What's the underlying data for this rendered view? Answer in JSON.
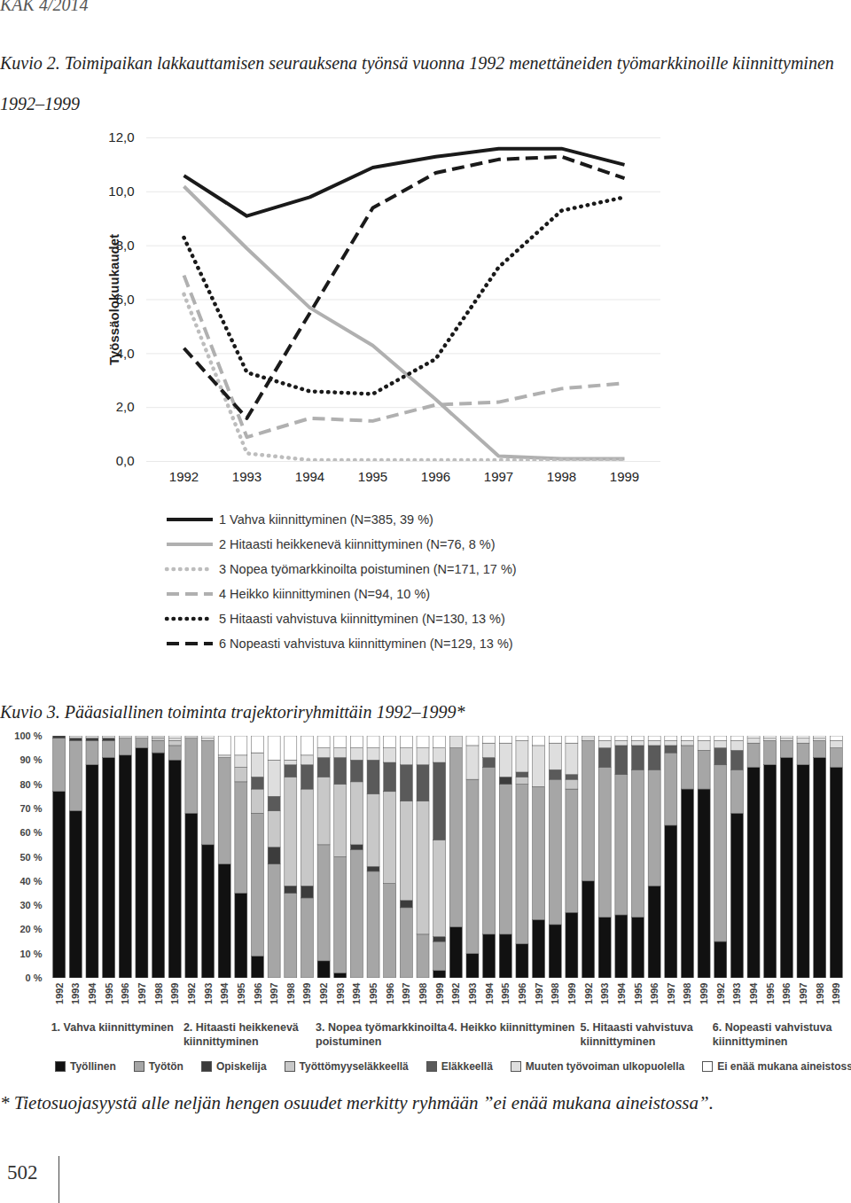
{
  "page": {
    "header": "KAK 4/2014",
    "page_number": "502"
  },
  "chart_data": [
    {
      "type": "line",
      "title": "Kuvio 2. Toimipaikan lakkauttamisen seurauksena työnsä vuonna 1992 menettäneiden työmarkkinoille kiinnittyminen 1992–1999",
      "y_label": "Työssäolokuukaudet",
      "categories": [
        "1992",
        "1993",
        "1994",
        "1995",
        "1996",
        "1997",
        "1998",
        "1999"
      ],
      "ylim": [
        0,
        12
      ],
      "yticks": [
        {
          "value": 0,
          "label": "0,0"
        },
        {
          "value": 2,
          "label": "2,0"
        },
        {
          "value": 4,
          "label": "4,0"
        },
        {
          "value": 6,
          "label": "6,0"
        },
        {
          "value": 8,
          "label": "8,0"
        },
        {
          "value": 10,
          "label": "10,0"
        },
        {
          "value": 12,
          "label": "12,0"
        }
      ],
      "grid": true,
      "legend": "bottom",
      "series": [
        {
          "name": "1 Vahva kiinnittyminen (N=385, 39 %)",
          "color": "#1a1a1a",
          "line_style": "solid",
          "values": [
            10.6,
            9.1,
            9.8,
            10.9,
            11.3,
            11.6,
            11.6,
            11.0
          ]
        },
        {
          "name": "2 Hitaasti heikkenevä kiinnittyminen (N=76, 8 %)",
          "color": "#b0b0b0",
          "line_style": "solid",
          "values": [
            10.2,
            7.9,
            5.7,
            4.3,
            2.3,
            0.2,
            0.1,
            0.1
          ]
        },
        {
          "name": "3 Nopea työmarkkinoilta poistuminen (N=171, 17 %)",
          "color": "#bdbdbd",
          "line_style": "dotted",
          "values": [
            6.2,
            0.3,
            0.05,
            0.05,
            0.05,
            0.05,
            0.05,
            0.05
          ]
        },
        {
          "name": "4 Heikko kiinnittyminen (N=94, 10 %)",
          "color": "#b0b0b0",
          "line_style": "dashed",
          "values": [
            6.9,
            0.9,
            1.6,
            1.5,
            2.1,
            2.2,
            2.7,
            2.9
          ]
        },
        {
          "name": "5 Hitaasti vahvistuva kiinnittyminen (N=130, 13 %)",
          "color": "#1a1a1a",
          "line_style": "dotted",
          "values": [
            8.3,
            3.3,
            2.6,
            2.5,
            3.8,
            7.2,
            9.3,
            9.8
          ]
        },
        {
          "name": "6 Nopeasti vahvistuva kiinnittyminen (N=129, 13 %)",
          "color": "#1a1a1a",
          "line_style": "dashed",
          "values": [
            4.2,
            1.6,
            5.5,
            9.4,
            10.7,
            11.2,
            11.3,
            10.5
          ]
        }
      ]
    },
    {
      "type": "bar",
      "stacked": true,
      "title": "Kuvio 3. Pääasiallinen toiminta trajektoriryhmittäin 1992–1999*",
      "categories": [
        "1992",
        "1993",
        "1994",
        "1995",
        "1996",
        "1997",
        "1998",
        "1999",
        "1992",
        "1993",
        "1994",
        "1995",
        "1996",
        "1997",
        "1998",
        "1999",
        "1992",
        "1993",
        "1994",
        "1995",
        "1996",
        "1997",
        "1998",
        "1999",
        "1992",
        "1993",
        "1994",
        "1995",
        "1996",
        "1997",
        "1998",
        "1999",
        "1992",
        "1993",
        "1994",
        "1995",
        "1996",
        "1997",
        "1998",
        "1999",
        "1992",
        "1993",
        "1994",
        "1995",
        "1996",
        "1997",
        "1998",
        "1999"
      ],
      "groups": [
        {
          "label": "1. Vahva kiinnittyminen",
          "count": 8
        },
        {
          "label": "2. Hitaasti heikkenevä kiinnittyminen",
          "count": 8
        },
        {
          "label": "3. Nopea työmarkkinoilta poistuminen",
          "count": 8
        },
        {
          "label": "4. Heikko kiinnittyminen",
          "count": 8
        },
        {
          "label": "5. Hitaasti vahvistuva kiinnittyminen",
          "count": 8
        },
        {
          "label": "6. Nopeasti vahvistuva kiinnittyminen",
          "count": 8
        }
      ],
      "ylim": [
        0,
        100
      ],
      "yticks": [
        {
          "value": 0,
          "label": "0 %"
        },
        {
          "value": 10,
          "label": "10 %"
        },
        {
          "value": 20,
          "label": "20 %"
        },
        {
          "value": 30,
          "label": "30 %"
        },
        {
          "value": 40,
          "label": "40 %"
        },
        {
          "value": 50,
          "label": "50 %"
        },
        {
          "value": 60,
          "label": "60 %"
        },
        {
          "value": 70,
          "label": "70 %"
        },
        {
          "value": 80,
          "label": "80 %"
        },
        {
          "value": 90,
          "label": "90 %"
        },
        {
          "value": 100,
          "label": "100 %"
        }
      ],
      "legend": "bottom",
      "series": [
        {
          "name": "Työllinen",
          "color": "#111111",
          "values": [
            77,
            69,
            88,
            91,
            92,
            95,
            93,
            90,
            68,
            55,
            47,
            35,
            9,
            0,
            0,
            0,
            7,
            2,
            0,
            0,
            0,
            0,
            0,
            3,
            21,
            10,
            18,
            18,
            14,
            24,
            22,
            27,
            40,
            25,
            26,
            25,
            38,
            63,
            78,
            78,
            15,
            68,
            87,
            88,
            91,
            88,
            91,
            87
          ]
        },
        {
          "name": "Työtön",
          "color": "#a6a6a6",
          "values": [
            22,
            29,
            10,
            7,
            7,
            4,
            5,
            6,
            31,
            43,
            44,
            46,
            59,
            47,
            35,
            33,
            48,
            48,
            53,
            44,
            39,
            29,
            18,
            12,
            74,
            72,
            69,
            62,
            66,
            55,
            60,
            51,
            58,
            62,
            58,
            61,
            48,
            30,
            18,
            16,
            73,
            18,
            10,
            10,
            7,
            9,
            7,
            8
          ]
        },
        {
          "name": "Opiskelija",
          "color": "#3c3c3c",
          "values": [
            1,
            1,
            1,
            1,
            0,
            0,
            0,
            0,
            0,
            0,
            0,
            0,
            0,
            7,
            3,
            5,
            0,
            0,
            2,
            2,
            0,
            3,
            0,
            2,
            0,
            0,
            0,
            3,
            0,
            0,
            0,
            0,
            0,
            0,
            0,
            0,
            0,
            0,
            0,
            0,
            0,
            0,
            0,
            0,
            0,
            0,
            0,
            0
          ]
        },
        {
          "name": "Työttömyyseläkkeellä",
          "color": "#c8c8c8",
          "values": [
            0,
            0,
            0,
            0,
            0,
            0,
            1,
            2,
            0,
            0,
            0,
            6,
            10,
            15,
            45,
            40,
            28,
            30,
            26,
            30,
            38,
            41,
            55,
            40,
            0,
            0,
            0,
            0,
            3,
            0,
            0,
            4,
            0,
            0,
            0,
            0,
            0,
            0,
            0,
            0,
            0,
            0,
            0,
            0,
            0,
            0,
            0,
            0
          ]
        },
        {
          "name": "Eläkkeellä",
          "color": "#5a5a5a",
          "values": [
            0,
            0,
            0,
            0,
            0,
            0,
            0,
            0,
            0,
            0,
            0,
            0,
            5,
            6,
            5,
            10,
            8,
            11,
            9,
            14,
            12,
            15,
            15,
            32,
            0,
            0,
            4,
            0,
            2,
            0,
            4,
            2,
            0,
            8,
            12,
            10,
            10,
            3,
            0,
            0,
            7,
            8,
            0,
            0,
            0,
            0,
            0,
            0
          ]
        },
        {
          "name": "Muuten työvoiman ulkopuolella",
          "color": "#dedede",
          "values": [
            0,
            1,
            1,
            1,
            1,
            1,
            1,
            1,
            1,
            1,
            1,
            5,
            10,
            15,
            2,
            4,
            4,
            4,
            5,
            5,
            6,
            7,
            7,
            6,
            5,
            14,
            6,
            14,
            13,
            17,
            11,
            13,
            2,
            3,
            2,
            2,
            2,
            2,
            2,
            4,
            3,
            4,
            2,
            1,
            1,
            2,
            1,
            3
          ]
        },
        {
          "name": "Ei enää mukana aineistossa",
          "color": "#ffffff",
          "values": [
            0,
            0,
            0,
            0,
            0,
            0,
            0,
            1,
            0,
            1,
            8,
            8,
            7,
            10,
            10,
            8,
            5,
            5,
            5,
            5,
            5,
            5,
            5,
            5,
            0,
            4,
            3,
            3,
            2,
            4,
            3,
            3,
            0,
            2,
            2,
            2,
            2,
            2,
            2,
            2,
            2,
            2,
            1,
            1,
            1,
            1,
            1,
            2
          ]
        }
      ],
      "note": "* Tietosuojasyystä alle neljän hengen osuudet merkitty ryhmään ”ei enää mukana aineistossa”."
    }
  ]
}
